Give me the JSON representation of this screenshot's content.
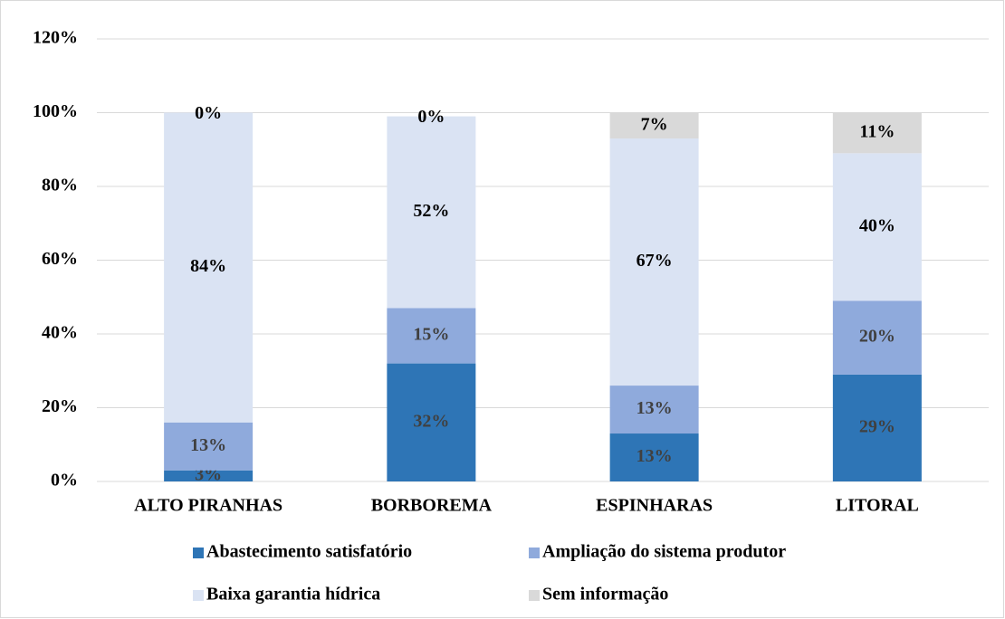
{
  "chart_data": {
    "type": "stacked_bar",
    "categories": [
      "ALTO PIRANHAS",
      "BORBOREMA",
      "ESPINHARAS",
      "LITORAL"
    ],
    "series": [
      {
        "name": "Abastecimento satisfatório",
        "color": "#2e75b6",
        "values": [
          3,
          32,
          13,
          29
        ],
        "value_labels": [
          "3%",
          "32%",
          "13%",
          "29%"
        ]
      },
      {
        "name": "Ampliação do sistema produtor",
        "color": "#8faadc",
        "values": [
          13,
          15,
          13,
          20
        ],
        "value_labels": [
          "13%",
          "15%",
          "13%",
          "20%"
        ]
      },
      {
        "name": "Baixa garantia hídrica",
        "color": "#dae3f3",
        "values": [
          84,
          52,
          67,
          40
        ],
        "value_labels": [
          "84%",
          "52%",
          "67%",
          "40%"
        ]
      },
      {
        "name": "Sem informação",
        "color": "#d9d9d9",
        "values": [
          0,
          0,
          7,
          11
        ],
        "value_labels": [
          "0%",
          "0%",
          "7%",
          "11%"
        ]
      }
    ],
    "ylim": [
      0,
      120
    ],
    "yticks": [
      {
        "value": 0,
        "label": "0%"
      },
      {
        "value": 20,
        "label": "20%"
      },
      {
        "value": 40,
        "label": "40%"
      },
      {
        "value": 60,
        "label": "60%"
      },
      {
        "value": 80,
        "label": "80%"
      },
      {
        "value": 100,
        "label": "100%"
      },
      {
        "value": 120,
        "label": "120%"
      }
    ],
    "grid": true,
    "legend": "bottom"
  }
}
